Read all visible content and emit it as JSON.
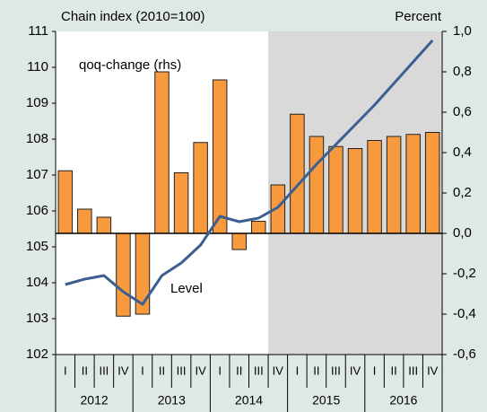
{
  "chart_data": {
    "type": "bar-line",
    "y_label": "Chain index (2010=100)",
    "y2_label": "Percent",
    "categories": [
      "I",
      "II",
      "III",
      "IV",
      "I",
      "II",
      "III",
      "IV",
      "I",
      "II",
      "III",
      "IV",
      "I",
      "II",
      "III",
      "IV",
      "I",
      "II",
      "III",
      "IV"
    ],
    "years": [
      "2012",
      "2013",
      "2014",
      "2015",
      "2016"
    ],
    "shaded_from": 11,
    "series": [
      {
        "name": "qoq-change (rhs)",
        "type": "bar",
        "axis": "y2",
        "color": "#f79a3e",
        "values": [
          0.31,
          0.12,
          0.08,
          -0.41,
          -0.4,
          0.8,
          0.3,
          0.45,
          0.76,
          -0.08,
          0.06,
          0.24,
          0.59,
          0.48,
          0.43,
          0.42,
          0.46,
          0.48,
          0.49,
          0.5
        ]
      },
      {
        "name": "Level",
        "type": "line",
        "axis": "y",
        "color": "#3c5f91",
        "values": [
          103.95,
          104.1,
          104.2,
          103.75,
          103.4,
          104.2,
          104.55,
          105.05,
          105.85,
          105.7,
          105.8,
          106.1,
          106.7,
          107.3,
          107.85,
          108.4,
          108.95,
          109.55,
          110.15,
          110.75
        ]
      }
    ],
    "ylim": [
      102,
      111
    ],
    "yticks": [
      102,
      103,
      104,
      105,
      106,
      107,
      108,
      109,
      110,
      111
    ],
    "y2lim": [
      -0.6,
      1.0
    ],
    "y2ticks": [
      {
        "value": -0.6,
        "label": "-0,6"
      },
      {
        "value": -0.4,
        "label": "-0,4"
      },
      {
        "value": -0.2,
        "label": "-0,2"
      },
      {
        "value": 0.0,
        "label": "0,0"
      },
      {
        "value": 0.2,
        "label": "0,2"
      },
      {
        "value": 0.4,
        "label": "0,4"
      },
      {
        "value": 0.6,
        "label": "0,6"
      },
      {
        "value": 0.8,
        "label": "0,8"
      },
      {
        "value": 1.0,
        "label": "1,0"
      }
    ]
  }
}
